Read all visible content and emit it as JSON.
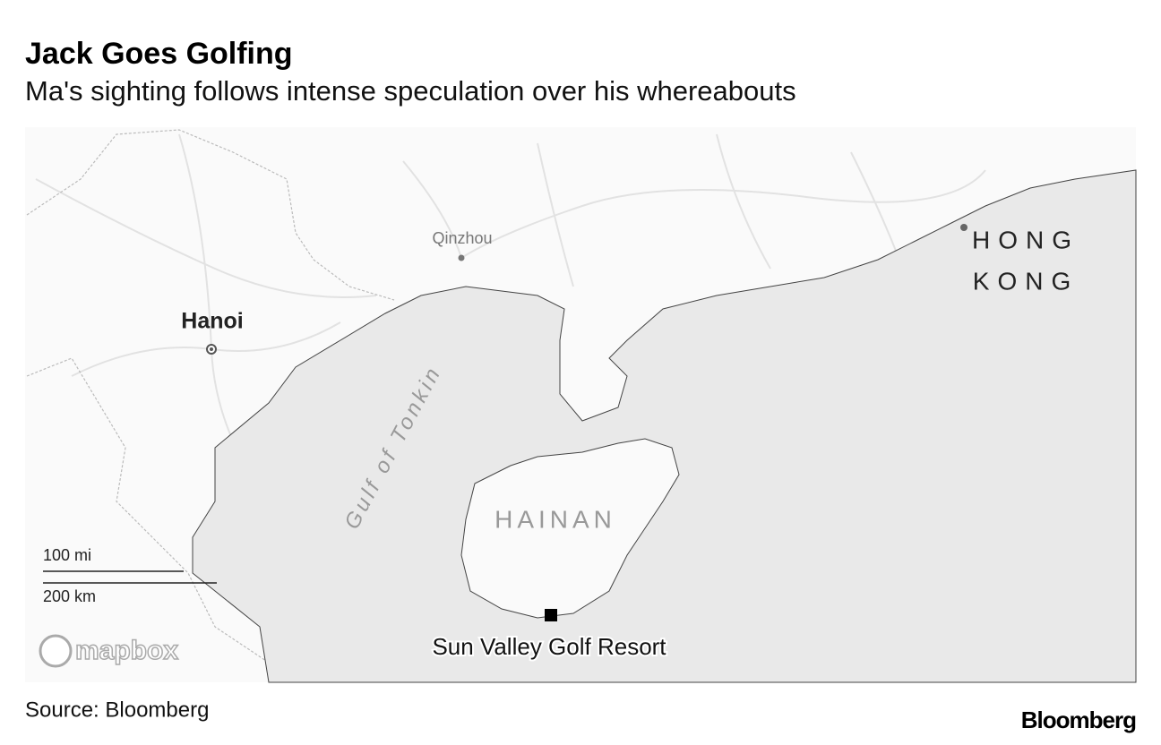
{
  "header": {
    "title": "Jack Goes Golfing",
    "subtitle": "Ma's sighting follows intense speculation over his whereabouts"
  },
  "map": {
    "places": {
      "qinzhou": "Qinzhou",
      "hanoi": "Hanoi",
      "hong": "HONG",
      "kong": "KONG",
      "gulf": "Gulf of Tonkin",
      "hainan": "HAINAN",
      "resort": "Sun Valley Golf Resort"
    },
    "scale": {
      "miles": "100 mi",
      "km": "200 km"
    },
    "logo": "mapbox"
  },
  "footer": {
    "source": "Source: Bloomberg",
    "brand": "Bloomberg"
  }
}
